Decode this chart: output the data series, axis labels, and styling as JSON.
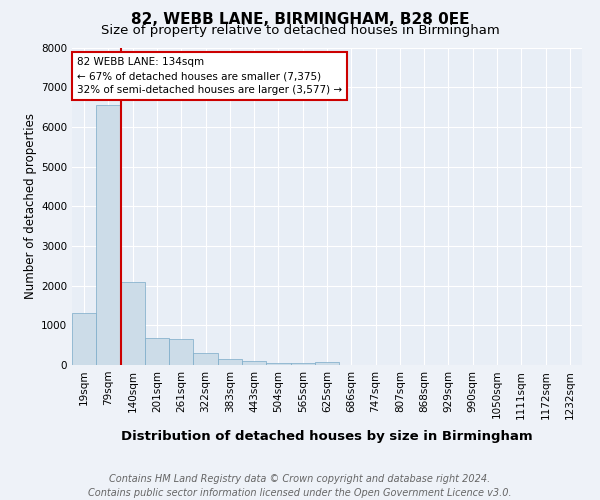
{
  "title": "82, WEBB LANE, BIRMINGHAM, B28 0EE",
  "subtitle": "Size of property relative to detached houses in Birmingham",
  "xlabel": "Distribution of detached houses by size in Birmingham",
  "ylabel": "Number of detached properties",
  "categories": [
    "19sqm",
    "79sqm",
    "140sqm",
    "201sqm",
    "261sqm",
    "322sqm",
    "383sqm",
    "443sqm",
    "504sqm",
    "565sqm",
    "625sqm",
    "686sqm",
    "747sqm",
    "807sqm",
    "868sqm",
    "929sqm",
    "990sqm",
    "1050sqm",
    "1111sqm",
    "1172sqm",
    "1232sqm"
  ],
  "values": [
    1300,
    6550,
    2080,
    680,
    660,
    300,
    150,
    100,
    60,
    55,
    70,
    0,
    0,
    0,
    0,
    0,
    0,
    0,
    0,
    0,
    0
  ],
  "bar_color": "#ccdce8",
  "bar_edge_color": "#7aaac8",
  "property_line_x": 2.0,
  "property_line_color": "#cc0000",
  "annotation_text": "82 WEBB LANE: 134sqm\n← 67% of detached houses are smaller (7,375)\n32% of semi-detached houses are larger (3,577) →",
  "annotation_box_facecolor": "#ffffff",
  "annotation_box_edgecolor": "#cc0000",
  "ylim": [
    0,
    8000
  ],
  "yticks": [
    0,
    1000,
    2000,
    3000,
    4000,
    5000,
    6000,
    7000,
    8000
  ],
  "footer_line1": "Contains HM Land Registry data © Crown copyright and database right 2024.",
  "footer_line2": "Contains public sector information licensed under the Open Government Licence v3.0.",
  "background_color": "#eef2f8",
  "plot_background_color": "#e8eef6",
  "grid_color": "#ffffff",
  "title_fontsize": 11,
  "subtitle_fontsize": 9.5,
  "xlabel_fontsize": 9.5,
  "ylabel_fontsize": 8.5,
  "tick_fontsize": 7.5,
  "annotation_fontsize": 7.5,
  "footer_fontsize": 7
}
